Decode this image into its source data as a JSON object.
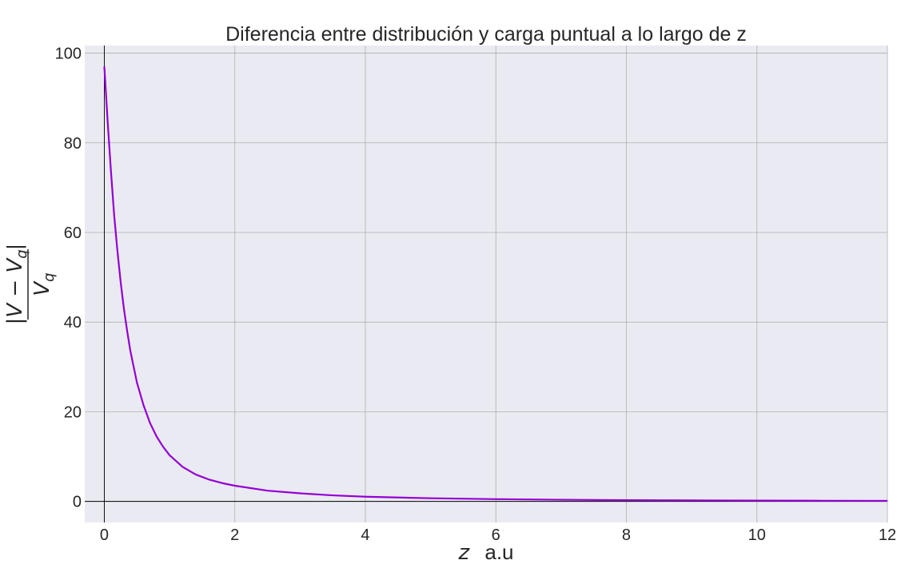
{
  "chart_data": {
    "type": "line",
    "title": "Diferencia entre distribución y carga puntual a lo largo de z",
    "xlabel": "z  a.u",
    "xlabel_parts": {
      "var": "z",
      "unit": "a.u"
    },
    "ylabel": "|V − Vq| / Vq",
    "ylabel_parts": {
      "numerator": "|V − V",
      "numerator_sub": "q",
      "numerator_close": "|",
      "denominator": "V",
      "denominator_sub": "q"
    },
    "xlim": [
      -0.3,
      12
    ],
    "ylim": [
      -4.7,
      101.7
    ],
    "xticks": [
      0,
      2,
      4,
      6,
      8,
      10,
      12
    ],
    "yticks": [
      0,
      20,
      40,
      60,
      80,
      100
    ],
    "grid": true,
    "reference_lines": {
      "x": 0,
      "y": 0
    },
    "series": [
      {
        "color": "#9400d3",
        "x": [
          0.0,
          0.05,
          0.1,
          0.15,
          0.2,
          0.25,
          0.3,
          0.35,
          0.4,
          0.45,
          0.5,
          0.6,
          0.7,
          0.8,
          0.9,
          1.0,
          1.2,
          1.4,
          1.6,
          1.8,
          2.0,
          2.5,
          3.0,
          3.5,
          4.0,
          5.0,
          6.0,
          7.0,
          8.0,
          9.0,
          10.0,
          11.0,
          12.0
        ],
        "y": [
          97.0,
          85.0,
          74.0,
          64.0,
          56.0,
          49.0,
          43.0,
          38.0,
          33.5,
          30.0,
          26.5,
          21.5,
          17.5,
          14.5,
          12.2,
          10.3,
          7.7,
          6.0,
          4.9,
          4.1,
          3.5,
          2.4,
          1.8,
          1.35,
          1.05,
          0.7,
          0.5,
          0.37,
          0.28,
          0.22,
          0.18,
          0.15,
          0.12
        ]
      }
    ],
    "colors": {
      "background": "#eaeaf2",
      "grid": "#b0b0b0",
      "line": "#9400d3",
      "axis_lines": "#000000"
    }
  }
}
